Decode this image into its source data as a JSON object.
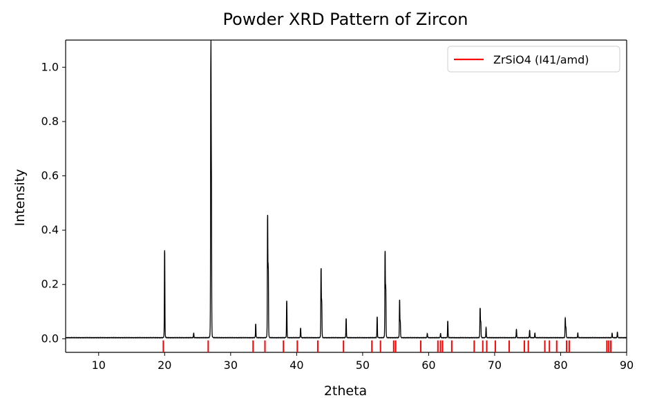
{
  "chart_data": {
    "type": "line",
    "title": "Powder XRD Pattern of Zircon",
    "xlabel": "2theta",
    "ylabel": "Intensity",
    "xlim": [
      5,
      90
    ],
    "ylim": [
      -0.05,
      1.1
    ],
    "xticks": [
      10,
      20,
      30,
      40,
      50,
      60,
      70,
      80,
      90
    ],
    "yticks": [
      0.0,
      0.2,
      0.4,
      0.6,
      0.8,
      1.0
    ],
    "xtick_labels": [
      "10",
      "20",
      "30",
      "40",
      "50",
      "60",
      "70",
      "80",
      "90"
    ],
    "ytick_labels": [
      "0.0",
      "0.2",
      "0.4",
      "0.6",
      "0.8",
      "1.0"
    ],
    "grid": false,
    "legend_position": "top-right",
    "baseline": 0.004,
    "series": [
      {
        "name": "",
        "color": "#000000",
        "peaks": [
          {
            "x": 20.0,
            "y": 0.325
          },
          {
            "x": 24.4,
            "y": 0.02
          },
          {
            "x": 27.0,
            "y": 1.0
          },
          {
            "x": 27.08,
            "y": 0.57
          },
          {
            "x": 33.8,
            "y": 0.055
          },
          {
            "x": 35.6,
            "y": 0.445
          },
          {
            "x": 35.7,
            "y": 0.25
          },
          {
            "x": 38.5,
            "y": 0.14
          },
          {
            "x": 40.6,
            "y": 0.04
          },
          {
            "x": 43.7,
            "y": 0.255
          },
          {
            "x": 43.8,
            "y": 0.13
          },
          {
            "x": 47.5,
            "y": 0.075
          },
          {
            "x": 52.2,
            "y": 0.08
          },
          {
            "x": 53.4,
            "y": 0.315
          },
          {
            "x": 53.5,
            "y": 0.18
          },
          {
            "x": 55.6,
            "y": 0.14
          },
          {
            "x": 55.7,
            "y": 0.06
          },
          {
            "x": 59.8,
            "y": 0.02
          },
          {
            "x": 61.8,
            "y": 0.02
          },
          {
            "x": 62.9,
            "y": 0.065
          },
          {
            "x": 67.8,
            "y": 0.11
          },
          {
            "x": 67.9,
            "y": 0.06
          },
          {
            "x": 68.7,
            "y": 0.04
          },
          {
            "x": 73.3,
            "y": 0.035
          },
          {
            "x": 75.3,
            "y": 0.03
          },
          {
            "x": 76.1,
            "y": 0.02
          },
          {
            "x": 80.7,
            "y": 0.075
          },
          {
            "x": 80.8,
            "y": 0.04
          },
          {
            "x": 82.6,
            "y": 0.02
          },
          {
            "x": 87.8,
            "y": 0.02
          },
          {
            "x": 88.6,
            "y": 0.025
          }
        ]
      },
      {
        "name": "ZrSiO4 (I41/amd)",
        "color": "#ff0000",
        "type": "reference_ticks",
        "positions": [
          19.8,
          26.6,
          33.4,
          35.2,
          38.0,
          40.1,
          43.2,
          47.1,
          51.4,
          52.7,
          54.7,
          55.0,
          58.8,
          61.4,
          61.8,
          62.1,
          63.5,
          66.9,
          68.2,
          68.8,
          70.1,
          72.2,
          74.5,
          75.1,
          77.6,
          78.3,
          79.4,
          80.9,
          81.3,
          87.0,
          87.3,
          87.6
        ]
      }
    ]
  }
}
